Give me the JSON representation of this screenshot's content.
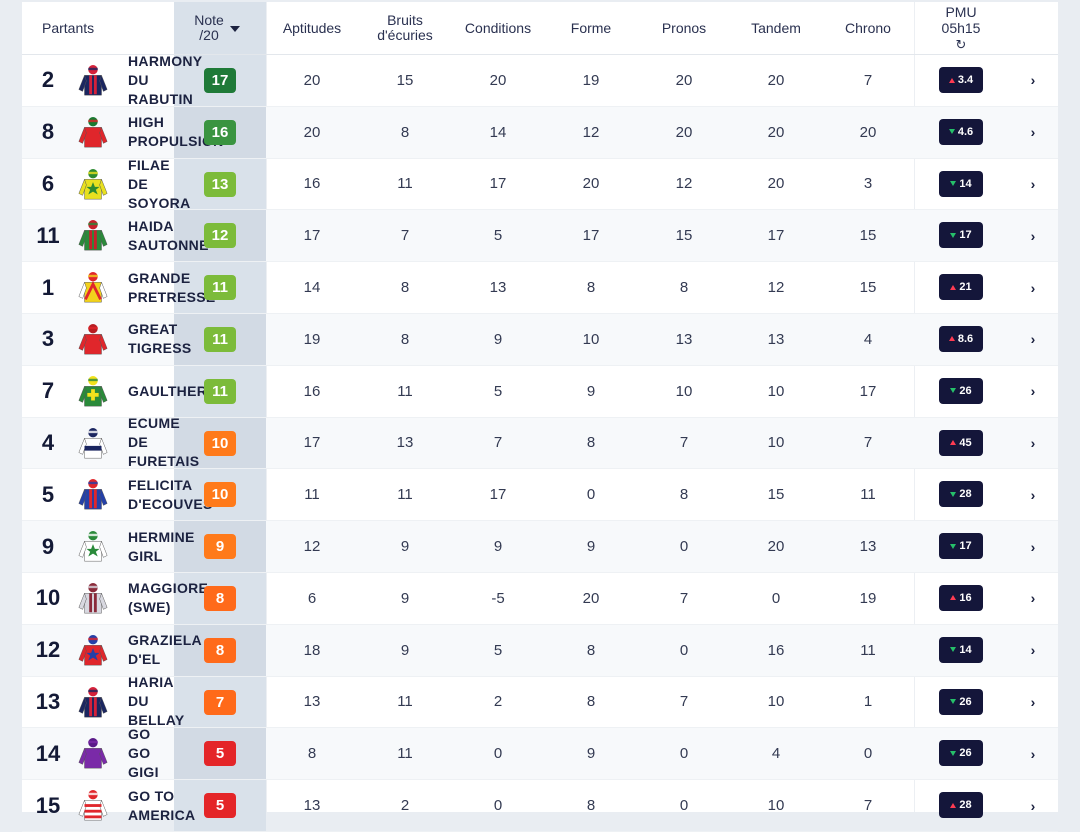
{
  "header": {
    "partants": "Partants",
    "note_line1": "Note",
    "note_line2": "/20",
    "aptitudes": "Aptitudes",
    "bruits_line1": "Bruits",
    "bruits_line2": "d'écuries",
    "conditions": "Conditions",
    "forme": "Forme",
    "pronos": "Pronos",
    "tandem": "Tandem",
    "chrono": "Chrono",
    "pmu_line1": "PMU",
    "pmu_line2": "05h15",
    "refresh_icon": "refresh-icon"
  },
  "colors": {
    "note_17": "#1f7a38",
    "note_16": "#3a9440",
    "note_13_11": "#7cbb3a",
    "note_10_9": "#ff7a1a",
    "note_8_7": "#ff6a1a",
    "note_5": "#e42528",
    "odds_bg": "#14163a",
    "trend_up": "#ff3b52",
    "trend_down": "#26c06a"
  },
  "runners": [
    {
      "num": "2",
      "name": "HARMONY\nDU\nRABUTIN",
      "note": "17",
      "note_color": "#1f7a38",
      "aptitudes": "20",
      "bruits": "15",
      "conditions": "20",
      "forme": "19",
      "pronos": "20",
      "tandem": "20",
      "chrono": "7",
      "odds": "3.4",
      "trend": "up",
      "silk": {
        "body": "#1b2660",
        "sleeve": "#1b2660",
        "accent": "#d6213a",
        "pattern": "stripes"
      }
    },
    {
      "num": "8",
      "name": "HIGH\nPROPULSION",
      "note": "16",
      "note_color": "#3a9440",
      "aptitudes": "20",
      "bruits": "8",
      "conditions": "14",
      "forme": "12",
      "pronos": "20",
      "tandem": "20",
      "chrono": "20",
      "odds": "4.6",
      "trend": "down",
      "silk": {
        "body": "#e0262b",
        "sleeve": "#e0262b",
        "accent": "#1a7a30",
        "pattern": "plain"
      }
    },
    {
      "num": "6",
      "name": "FILAE\nDE\nSOYORA",
      "note": "13",
      "note_color": "#7cbb3a",
      "aptitudes": "16",
      "bruits": "11",
      "conditions": "17",
      "forme": "20",
      "pronos": "12",
      "tandem": "20",
      "chrono": "3",
      "odds": "14",
      "trend": "down",
      "silk": {
        "body": "#e8e020",
        "sleeve": "#e8e020",
        "accent": "#2d8a30",
        "pattern": "star"
      }
    },
    {
      "num": "11",
      "name": "HAIDA\nSAUTONNE",
      "note": "12",
      "note_color": "#7cbb3a",
      "aptitudes": "17",
      "bruits": "7",
      "conditions": "5",
      "forme": "17",
      "pronos": "15",
      "tandem": "17",
      "chrono": "15",
      "odds": "17",
      "trend": "down",
      "silk": {
        "body": "#2a8a3a",
        "sleeve": "#2a8a3a",
        "accent": "#c8202a",
        "pattern": "stripes"
      }
    },
    {
      "num": "1",
      "name": "GRANDE\nPRETRESSE",
      "note": "11",
      "note_color": "#7cbb3a",
      "aptitudes": "14",
      "bruits": "8",
      "conditions": "13",
      "forme": "8",
      "pronos": "8",
      "tandem": "12",
      "chrono": "15",
      "odds": "21",
      "trend": "up",
      "silk": {
        "body": "#f2d21c",
        "sleeve": "#ffffff",
        "accent": "#e0262b",
        "pattern": "chevron"
      }
    },
    {
      "num": "3",
      "name": "GREAT\nTIGRESS",
      "note": "11",
      "note_color": "#7cbb3a",
      "aptitudes": "19",
      "bruits": "8",
      "conditions": "9",
      "forme": "10",
      "pronos": "13",
      "tandem": "13",
      "chrono": "4",
      "odds": "8.6",
      "trend": "up",
      "silk": {
        "body": "#e0262b",
        "sleeve": "#e0262b",
        "accent": "#b81d22",
        "pattern": "plain"
      }
    },
    {
      "num": "7",
      "name": "GAULTHER",
      "note": "11",
      "note_color": "#7cbb3a",
      "aptitudes": "16",
      "bruits": "11",
      "conditions": "5",
      "forme": "9",
      "pronos": "10",
      "tandem": "10",
      "chrono": "17",
      "odds": "26",
      "trend": "down",
      "silk": {
        "body": "#2a8a3a",
        "sleeve": "#2a8a3a",
        "accent": "#f2e21c",
        "pattern": "cross"
      }
    },
    {
      "num": "4",
      "name": "ECUME\nDE\nFURETAIS",
      "note": "10",
      "note_color": "#ff7a1a",
      "aptitudes": "17",
      "bruits": "13",
      "conditions": "7",
      "forme": "8",
      "pronos": "7",
      "tandem": "10",
      "chrono": "7",
      "odds": "45",
      "trend": "up",
      "silk": {
        "body": "#ffffff",
        "sleeve": "#ffffff",
        "accent": "#1b2660",
        "pattern": "band"
      }
    },
    {
      "num": "5",
      "name": "FELICITA\nD'ECOUVES",
      "note": "10",
      "note_color": "#ff7a1a",
      "aptitudes": "11",
      "bruits": "11",
      "conditions": "17",
      "forme": "0",
      "pronos": "8",
      "tandem": "15",
      "chrono": "11",
      "odds": "28",
      "trend": "down",
      "silk": {
        "body": "#2440a8",
        "sleeve": "#2440a8",
        "accent": "#e0262b",
        "pattern": "stripes"
      }
    },
    {
      "num": "9",
      "name": "HERMINE\nGIRL",
      "note": "9",
      "note_color": "#ff7a1a",
      "aptitudes": "12",
      "bruits": "9",
      "conditions": "9",
      "forme": "9",
      "pronos": "0",
      "tandem": "20",
      "chrono": "13",
      "odds": "17",
      "trend": "down",
      "silk": {
        "body": "#ffffff",
        "sleeve": "#ffffff",
        "accent": "#2a8a3a",
        "pattern": "star-red"
      }
    },
    {
      "num": "10",
      "name": "MAGGIORE\n(SWE)",
      "note": "8",
      "note_color": "#ff6a1a",
      "aptitudes": "6",
      "bruits": "9",
      "conditions": "-5",
      "forme": "20",
      "pronos": "7",
      "tandem": "0",
      "chrono": "19",
      "odds": "16",
      "trend": "up",
      "silk": {
        "body": "#d8d8e0",
        "sleeve": "#d8d8e0",
        "accent": "#8a2a3a",
        "pattern": "stripes"
      }
    },
    {
      "num": "12",
      "name": "GRAZIELA\nD'EL",
      "note": "8",
      "note_color": "#ff6a1a",
      "aptitudes": "18",
      "bruits": "9",
      "conditions": "5",
      "forme": "8",
      "pronos": "0",
      "tandem": "16",
      "chrono": "11",
      "odds": "14",
      "trend": "down",
      "silk": {
        "body": "#e0262b",
        "sleeve": "#e0262b",
        "accent": "#2440a8",
        "pattern": "star-blue"
      }
    },
    {
      "num": "13",
      "name": "HARIA\nDU\nBELLAY",
      "note": "7",
      "note_color": "#ff6a1a",
      "aptitudes": "13",
      "bruits": "11",
      "conditions": "2",
      "forme": "8",
      "pronos": "7",
      "tandem": "10",
      "chrono": "1",
      "odds": "26",
      "trend": "down",
      "silk": {
        "body": "#1b2660",
        "sleeve": "#1b2660",
        "accent": "#d6213a",
        "pattern": "stripes"
      }
    },
    {
      "num": "14",
      "name": "GO\nGO\nGIGI",
      "note": "5",
      "note_color": "#e42528",
      "aptitudes": "8",
      "bruits": "11",
      "conditions": "0",
      "forme": "9",
      "pronos": "0",
      "tandem": "4",
      "chrono": "0",
      "odds": "26",
      "trend": "down",
      "silk": {
        "body": "#7a2aa8",
        "sleeve": "#7a2aa8",
        "accent": "#5a1a88",
        "pattern": "plain"
      }
    },
    {
      "num": "15",
      "name": "GO TO\nAMERICA",
      "note": "5",
      "note_color": "#e42528",
      "aptitudes": "13",
      "bruits": "2",
      "conditions": "0",
      "forme": "8",
      "pronos": "0",
      "tandem": "10",
      "chrono": "7",
      "odds": "28",
      "trend": "up",
      "silk": {
        "body": "#ffffff",
        "sleeve": "#ffffff",
        "accent": "#e0262b",
        "pattern": "hoops"
      }
    }
  ]
}
